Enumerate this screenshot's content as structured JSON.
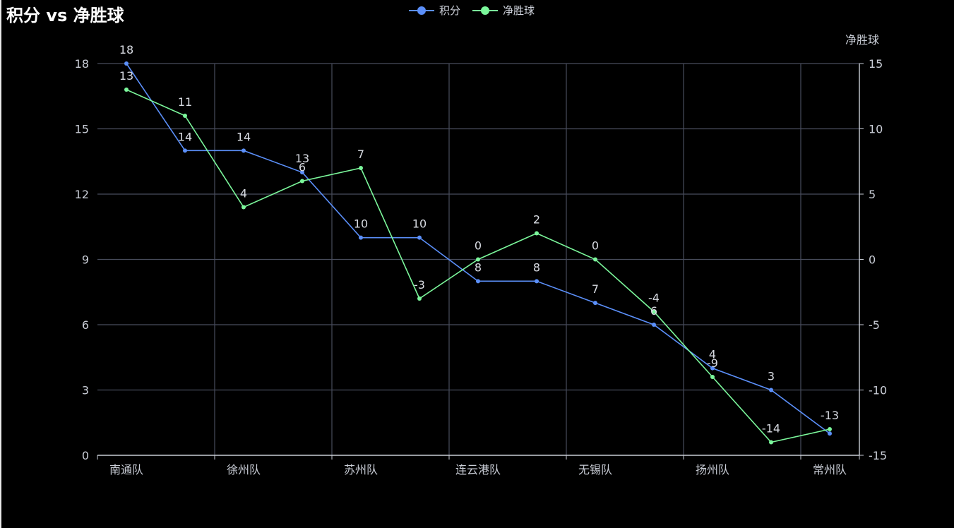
{
  "title": "积分 vs 净胜球",
  "colors": {
    "series_points": "#5b8ff9",
    "series_goal_diff": "#7bf79b",
    "grid": "#484c5c",
    "axis_text": "#c9cdd6",
    "label_text": "#d8dbe2",
    "background": "#000000"
  },
  "legend": [
    {
      "name": "积分",
      "color": "#5b8ff9"
    },
    {
      "name": "净胜球",
      "color": "#7bf79b"
    }
  ],
  "chart_data": {
    "type": "line",
    "title": "积分 vs 净胜球",
    "categories": [
      "南通队",
      "",
      "徐州队",
      "",
      "苏州队",
      "",
      "连云港队",
      "",
      "无锡队",
      "",
      "扬州队",
      "",
      "常州队"
    ],
    "x_tick_labels": [
      "南通队",
      "徐州队",
      "苏州队",
      "连云港队",
      "无锡队",
      "扬州队",
      "常州队"
    ],
    "series": [
      {
        "name": "积分",
        "axis": "left",
        "values": [
          18,
          14,
          14,
          13,
          10,
          10,
          8,
          8,
          7,
          6,
          4,
          3,
          1
        ]
      },
      {
        "name": "净胜球",
        "axis": "right",
        "values": [
          13,
          11,
          4,
          6,
          7,
          -3,
          0,
          2,
          0,
          -4,
          -9,
          -14,
          -13
        ]
      }
    ],
    "value_labels": {
      "积分": [
        "18",
        "14",
        "14",
        "13",
        "10",
        "10",
        "8",
        "8",
        "7",
        "6",
        "4",
        "3",
        ""
      ],
      "净胜球": [
        "13",
        "11",
        "4",
        "6",
        "7",
        "-3",
        "0",
        "2",
        "0",
        "-4",
        "-9",
        "-14",
        "-13"
      ]
    },
    "y_left": {
      "label": "",
      "min": 0,
      "max": 18,
      "ticks": [
        0,
        3,
        6,
        9,
        12,
        15,
        18
      ]
    },
    "y_right": {
      "label": "净胜球",
      "min": -15,
      "max": 15,
      "ticks": [
        -15,
        -10,
        -5,
        0,
        5,
        10,
        15
      ]
    },
    "grid": true,
    "legend_position": "top-center"
  }
}
